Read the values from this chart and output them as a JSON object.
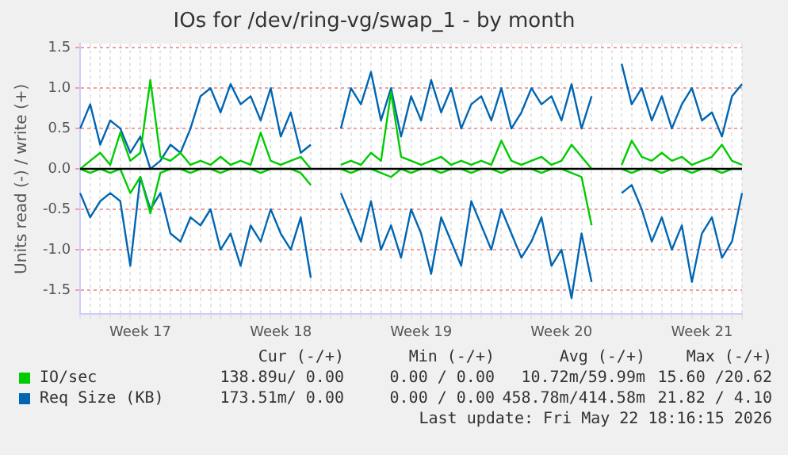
{
  "chart_data": {
    "type": "line",
    "title": "IOs for /dev/ring-vg/swap_1 - by month",
    "ylabel": "Units read (-) / write (+)",
    "categories": [
      null,
      null,
      null,
      null,
      null,
      null,
      "Week 17",
      null,
      null,
      null,
      null,
      null,
      null,
      null,
      null,
      null,
      null,
      null,
      null,
      null,
      "Week 18",
      null,
      null,
      null,
      null,
      null,
      null,
      null,
      null,
      null,
      null,
      null,
      null,
      null,
      "Week 19",
      null,
      null,
      null,
      null,
      null,
      null,
      null,
      null,
      null,
      null,
      null,
      null,
      null,
      "Week 20",
      null,
      null,
      null,
      null,
      null,
      null,
      null,
      null,
      null,
      null,
      null,
      null,
      null,
      "Week 21",
      null,
      null,
      null,
      null
    ],
    "series": [
      {
        "name": "IO/sec",
        "color": "#00cc00",
        "values": [
          0.0,
          0.1,
          0.2,
          0.05,
          0.45,
          0.1,
          0.2,
          1.1,
          0.15,
          0.1,
          0.2,
          0.05,
          0.1,
          0.05,
          0.15,
          0.05,
          0.1,
          0.05,
          0.45,
          0.1,
          0.05,
          0.1,
          0.15,
          0.0,
          null,
          null,
          0.05,
          0.1,
          0.05,
          0.2,
          0.1,
          0.95,
          0.15,
          0.1,
          0.05,
          0.1,
          0.15,
          0.05,
          0.1,
          0.05,
          0.1,
          0.05,
          0.35,
          0.1,
          0.05,
          0.1,
          0.15,
          0.05,
          0.1,
          0.3,
          0.15,
          0.0,
          null,
          null,
          0.05,
          0.35,
          0.15,
          0.1,
          0.2,
          0.1,
          0.15,
          0.05,
          0.1,
          0.15,
          0.3,
          0.1,
          0.05
        ]
      },
      {
        "color": "#00cc00",
        "values": [
          0,
          -0.05,
          0,
          -0.05,
          0,
          -0.3,
          -0.1,
          -0.55,
          -0.05,
          0,
          0,
          -0.05,
          0,
          0,
          -0.05,
          0,
          0,
          0,
          -0.05,
          0,
          0,
          0,
          -0.05,
          -0.2,
          null,
          null,
          0,
          -0.05,
          0,
          0,
          -0.05,
          -0.1,
          0,
          -0.05,
          0,
          0,
          -0.05,
          0,
          0,
          -0.05,
          0,
          0,
          -0.05,
          0,
          0,
          0,
          -0.05,
          0,
          0,
          -0.05,
          -0.1,
          -0.7,
          null,
          null,
          0,
          -0.05,
          0,
          0,
          -0.05,
          0,
          0,
          -0.05,
          0,
          0,
          -0.05,
          0,
          0
        ]
      },
      {
        "name": "Req Size (KB)",
        "color": "#0066b3",
        "values": [
          0.5,
          0.8,
          0.3,
          0.6,
          0.5,
          0.2,
          0.4,
          0.0,
          0.1,
          0.3,
          0.2,
          0.5,
          0.9,
          1.0,
          0.7,
          1.05,
          0.8,
          0.9,
          0.6,
          1.0,
          0.4,
          0.7,
          0.2,
          0.3,
          null,
          null,
          0.5,
          1.0,
          0.8,
          1.2,
          0.6,
          1.0,
          0.4,
          0.9,
          0.6,
          1.1,
          0.7,
          1.0,
          0.5,
          0.8,
          0.9,
          0.6,
          1.0,
          0.5,
          0.7,
          1.0,
          0.8,
          0.9,
          0.6,
          1.05,
          0.5,
          0.9,
          null,
          null,
          1.3,
          0.8,
          1.0,
          0.6,
          0.9,
          0.5,
          0.8,
          1.0,
          0.6,
          0.7,
          0.4,
          0.9,
          1.05
        ]
      },
      {
        "color": "#0066b3",
        "values": [
          -0.3,
          -0.6,
          -0.4,
          -0.3,
          -0.4,
          -1.2,
          -0.1,
          -0.5,
          -0.3,
          -0.8,
          -0.9,
          -0.6,
          -0.7,
          -0.5,
          -1.0,
          -0.8,
          -1.2,
          -0.7,
          -0.9,
          -0.5,
          -0.8,
          -1.0,
          -0.6,
          -1.35,
          null,
          null,
          -0.3,
          -0.6,
          -0.9,
          -0.4,
          -1.0,
          -0.7,
          -1.1,
          -0.5,
          -0.8,
          -1.3,
          -0.6,
          -0.9,
          -1.2,
          -0.4,
          -0.7,
          -1.0,
          -0.5,
          -0.8,
          -1.1,
          -0.9,
          -0.6,
          -1.2,
          -1.0,
          -1.6,
          -0.8,
          -1.4,
          null,
          null,
          -0.3,
          -0.2,
          -0.5,
          -0.9,
          -0.6,
          -1.0,
          -0.7,
          -1.4,
          -0.8,
          -0.6,
          -1.1,
          -0.9,
          -0.3
        ]
      }
    ],
    "ylim": [
      -1.8,
      1.55
    ],
    "yticks": [
      {
        "value": -1.5,
        "label": "-1.5"
      },
      {
        "value": -1,
        "label": "-1.0"
      },
      {
        "value": -0.5,
        "label": "-0.5"
      },
      {
        "value": 0,
        "label": "0.0"
      },
      {
        "value": 0.5,
        "label": "0.5"
      },
      {
        "value": 1,
        "label": "1.0"
      },
      {
        "value": 1.5,
        "label": "1.5"
      }
    ],
    "ref_lines": [
      {
        "axis": "y",
        "value": 0,
        "color": "#000000"
      }
    ],
    "grid": true,
    "legend": "bottom",
    "marker": "none",
    "line_style": "solid",
    "annotations": [
      "Cur (-/+)",
      "Min (-/+)",
      "Avg (-/+)",
      "Max (-/+)",
      "138.89u/ 0.00",
      "0.00 / 0.00",
      "10.72m/59.99m",
      "15.60 /20.62",
      "173.51m/ 0.00",
      "0.00 / 0.00",
      "458.78m/414.58m",
      "21.82 / 4.10",
      "Last update: Fri May 22 18:16:15 2026"
    ]
  }
}
